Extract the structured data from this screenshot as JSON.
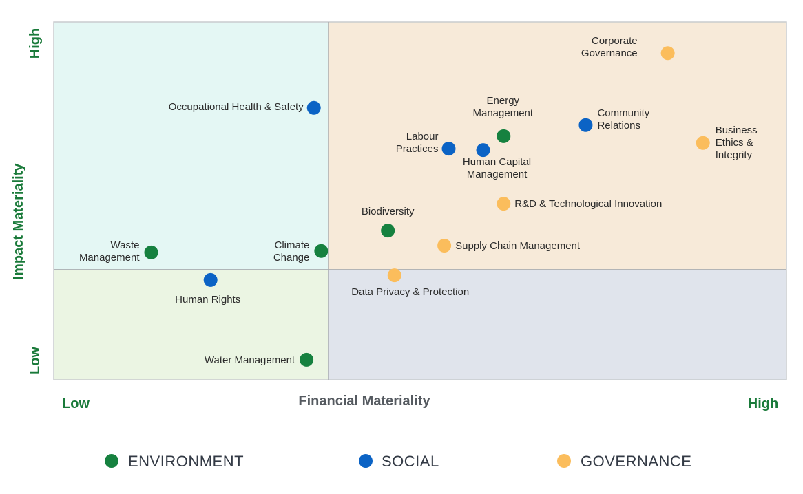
{
  "colors": {
    "environment": "#16813f",
    "social": "#0b63c5",
    "governance": "#fbbd5c",
    "axis_text_green": "#1a7a3a",
    "axis_title_gray": "#555a60",
    "quadrant_top_left": "#e4f7f4",
    "quadrant_top_right": "#f7ead9",
    "quadrant_bottom_left": "#ebf5e3",
    "quadrant_bottom_right": "#e0e4ec"
  },
  "chart_data": {
    "type": "scatter",
    "title": "",
    "xlabel": "Financial Materiality",
    "ylabel": "Impact Materiality",
    "x_low_label": "Low",
    "x_high_label": "High",
    "y_low_label": "Low",
    "y_high_label": "High",
    "xlim": [
      0,
      100
    ],
    "ylim": [
      0,
      100
    ],
    "quadrant_split": {
      "x": 37.5,
      "y": 30.8
    },
    "series": [
      {
        "name": "ENVIRONMENT",
        "color_key": "environment"
      },
      {
        "name": "SOCIAL",
        "color_key": "social"
      },
      {
        "name": "GOVERNANCE",
        "color_key": "governance"
      }
    ],
    "points": [
      {
        "label": [
          "Corporate",
          "Governance"
        ],
        "series": 2,
        "x": 83.8,
        "y": 91.3
      },
      {
        "label": [
          "Occupational Health & Safety"
        ],
        "series": 1,
        "x": 35.5,
        "y": 76.0
      },
      {
        "label": [
          "Energy",
          "Management"
        ],
        "series": 0,
        "x": 61.4,
        "y": 68.1
      },
      {
        "label": [
          "Community",
          "Relations"
        ],
        "series": 1,
        "x": 72.6,
        "y": 71.2
      },
      {
        "label": [
          "Labour",
          "Practices"
        ],
        "series": 1,
        "x": 53.9,
        "y": 64.6
      },
      {
        "label": [
          "Human Capital",
          "Management"
        ],
        "series": 1,
        "x": 58.6,
        "y": 64.2
      },
      {
        "label": [
          "Business",
          "Ethics &",
          "Integrity"
        ],
        "series": 2,
        "x": 88.6,
        "y": 66.2
      },
      {
        "label": [
          "R&D & Technological Innovation"
        ],
        "series": 2,
        "x": 61.4,
        "y": 49.2
      },
      {
        "label": [
          "Biodiversity"
        ],
        "series": 0,
        "x": 45.6,
        "y": 41.7
      },
      {
        "label": [
          "Supply Chain Management"
        ],
        "series": 2,
        "x": 53.3,
        "y": 37.5
      },
      {
        "label": [
          "Waste",
          "Management"
        ],
        "series": 0,
        "x": 13.3,
        "y": 35.6
      },
      {
        "label": [
          "Climate",
          "Change"
        ],
        "series": 0,
        "x": 36.5,
        "y": 36.0
      },
      {
        "label": [
          "Human Rights"
        ],
        "series": 1,
        "x": 21.4,
        "y": 27.9
      },
      {
        "label": [
          "Data Privacy &  Protection"
        ],
        "series": 2,
        "x": 46.5,
        "y": 29.2
      },
      {
        "label": [
          "Water Management"
        ],
        "series": 0,
        "x": 34.5,
        "y": 5.6
      }
    ]
  },
  "legend": [
    {
      "label": "ENVIRONMENT",
      "color_key": "environment"
    },
    {
      "label": "SOCIAL",
      "color_key": "social"
    },
    {
      "label": "GOVERNANCE",
      "color_key": "governance"
    }
  ]
}
